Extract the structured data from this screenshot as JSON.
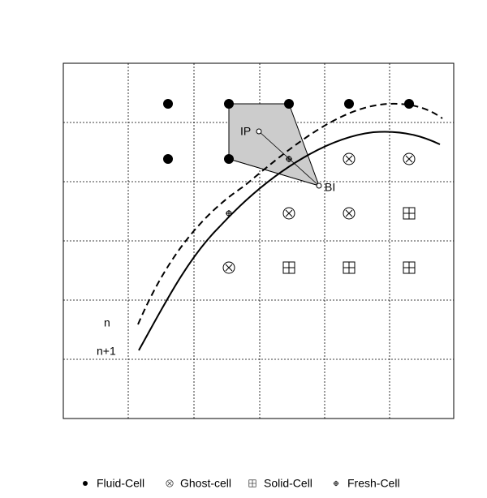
{
  "labels": {
    "ip": "IP",
    "bi": "BI",
    "n": "n",
    "n_plus_1": "n+1"
  },
  "legend": [
    "Fluid-Cell",
    "Ghost-cell",
    "Solid-Cell",
    "Fresh-Cell"
  ]
}
